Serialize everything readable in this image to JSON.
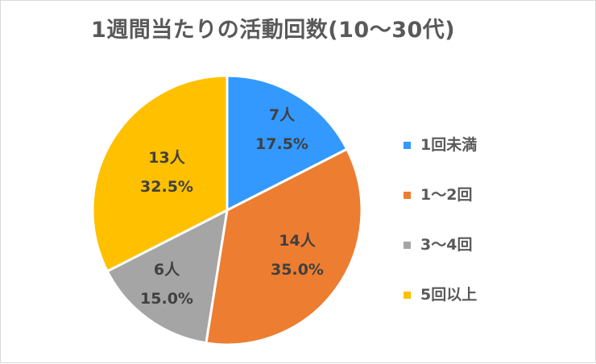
{
  "chart_data": {
    "type": "pie",
    "title": "1週間当たりの活動回数(10～30代)",
    "categories": [
      "1回未満",
      "1～2回",
      "3～4回",
      "5回以上"
    ],
    "values": [
      7,
      14,
      6,
      13
    ],
    "percentages": [
      17.5,
      35.0,
      15.0,
      32.5
    ],
    "unit": "人",
    "colors": [
      "#3399ff",
      "#ed7d31",
      "#a5a5a5",
      "#ffc000"
    ],
    "data_labels": [
      {
        "count": "7人",
        "percent": "17.5%"
      },
      {
        "count": "14人",
        "percent": "35.0%"
      },
      {
        "count": "6人",
        "percent": "15.0%"
      },
      {
        "count": "13人",
        "percent": "32.5%"
      }
    ],
    "legend_position": "right",
    "start_angle": "12 o'clock, clockwise"
  },
  "title": "1週間当たりの活動回数(10～30代)",
  "legend": [
    {
      "label": "1回未満",
      "color": "#3399ff"
    },
    {
      "label": "1～2回",
      "color": "#ed7d31"
    },
    {
      "label": "3～4回",
      "color": "#a5a5a5"
    },
    {
      "label": "5回以上",
      "color": "#ffc000"
    }
  ]
}
